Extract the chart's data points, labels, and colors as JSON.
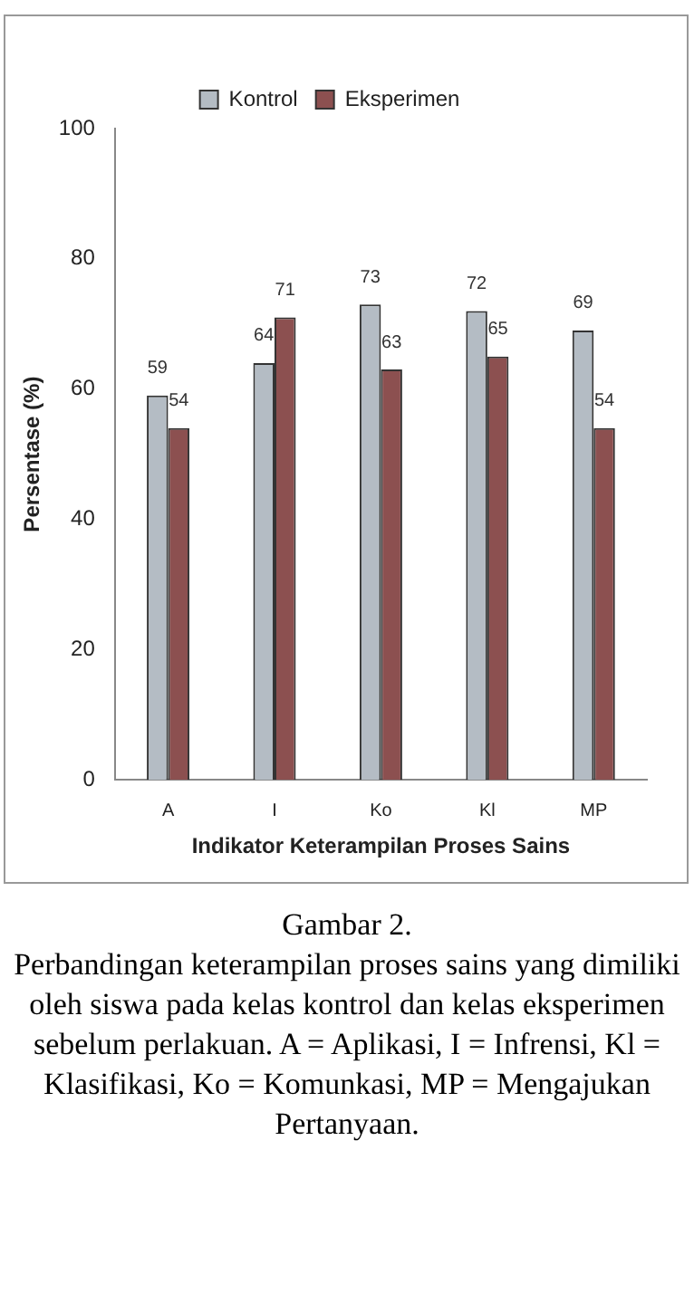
{
  "chart_data": {
    "type": "bar",
    "xlabel": "Indikator Keterampilan Proses Sains",
    "ylabel": "Persentase (%)",
    "categories": [
      "A",
      "I",
      "Ko",
      "Kl",
      "MP"
    ],
    "series": [
      {
        "name": "Kontrol",
        "color": "#b4bcc4",
        "values": [
          59,
          64,
          73,
          72,
          69
        ]
      },
      {
        "name": "Eksperimen",
        "color": "#8c5050",
        "values": [
          54,
          71,
          63,
          65,
          54
        ]
      }
    ],
    "ylim": [
      0,
      100
    ],
    "yticks": [
      0,
      20,
      40,
      60,
      80,
      100
    ],
    "grid": false,
    "legend": "top",
    "data_labels": true,
    "annotations": [
      "Gambar 2.",
      "Perbandingan keterampilan proses sains yang dimiliki oleh siswa pada kelas kontrol dan kelas eksperimen sebelum perlakuan. A = Aplikasi, I = Infrensi, Kl = Klasifikasi, Ko = Komunkasi, MP = Mengajukan Pertanyaan."
    ]
  }
}
